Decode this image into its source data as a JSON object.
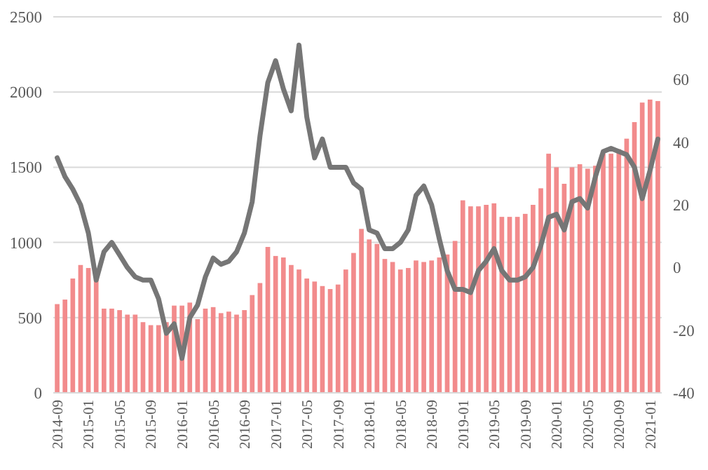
{
  "chart_data": {
    "type": "bar",
    "categories": [
      "2014-09",
      null,
      null,
      null,
      "2015-01",
      null,
      null,
      null,
      "2015-05",
      null,
      null,
      null,
      "2015-09",
      null,
      null,
      null,
      "2016-01",
      null,
      null,
      null,
      "2016-05",
      null,
      null,
      null,
      "2016-09",
      null,
      null,
      null,
      "2017-01",
      null,
      null,
      null,
      "2017-05",
      null,
      null,
      null,
      "2017-09",
      null,
      null,
      null,
      "2018-01",
      null,
      null,
      null,
      "2018-05",
      null,
      null,
      null,
      "2018-09",
      null,
      null,
      null,
      "2019-01",
      null,
      null,
      null,
      "2019-05",
      null,
      null,
      null,
      "2019-09",
      null,
      null,
      null,
      "2020-01",
      null,
      null,
      null,
      "2020-05",
      null,
      null,
      null,
      "2020-09",
      null,
      null,
      null,
      "2021-01",
      null
    ],
    "series": [
      {
        "color": "#f28b8c",
        "values": [
          590,
          620,
          760,
          850,
          830,
          760,
          560,
          560,
          550,
          520,
          520,
          470,
          450,
          450,
          470,
          580,
          580,
          600,
          490,
          560,
          570,
          530,
          540,
          520,
          550,
          650,
          730,
          970,
          910,
          900,
          850,
          820,
          760,
          740,
          710,
          690,
          720,
          820,
          930,
          1090,
          1020,
          990,
          890,
          870,
          820,
          830,
          880,
          870,
          880,
          900,
          920,
          1010,
          1280,
          1240,
          1240,
          1250,
          1260,
          1170,
          1170,
          1170,
          1190,
          1250,
          1360,
          1590,
          1500,
          1390,
          1500,
          1520,
          1490,
          1510,
          1590,
          1590,
          1620,
          1690,
          1800,
          1930,
          1950,
          1940
        ]
      },
      {
        "type": "line",
        "axis": "y2",
        "color": "#767676",
        "values": [
          35,
          29,
          25,
          20,
          11,
          -4,
          5,
          8,
          4,
          0,
          -3,
          -4,
          -4,
          -10,
          -21,
          -18,
          -29,
          -16,
          -12,
          -3,
          3,
          1,
          2,
          5,
          11,
          21,
          42,
          59,
          66,
          57,
          50,
          71,
          48,
          35,
          41,
          32,
          32,
          32,
          27,
          25,
          12,
          11,
          6,
          6,
          8,
          12,
          23,
          26,
          20,
          9,
          -1,
          -7,
          -7,
          -8,
          -1,
          2,
          6,
          -1,
          -4,
          -4,
          -3,
          0,
          7,
          16,
          17,
          12,
          21,
          22,
          19,
          29,
          37,
          38,
          37,
          36,
          32,
          22,
          31,
          41
        ]
      }
    ],
    "ylim": [
      0,
      2500
    ],
    "yticks": [
      0,
      500,
      1000,
      1500,
      2000,
      2500
    ],
    "y2lim": [
      -40,
      80
    ],
    "y2ticks": [
      -40,
      -20,
      0,
      20,
      40,
      60,
      80
    ],
    "grid": "y"
  }
}
